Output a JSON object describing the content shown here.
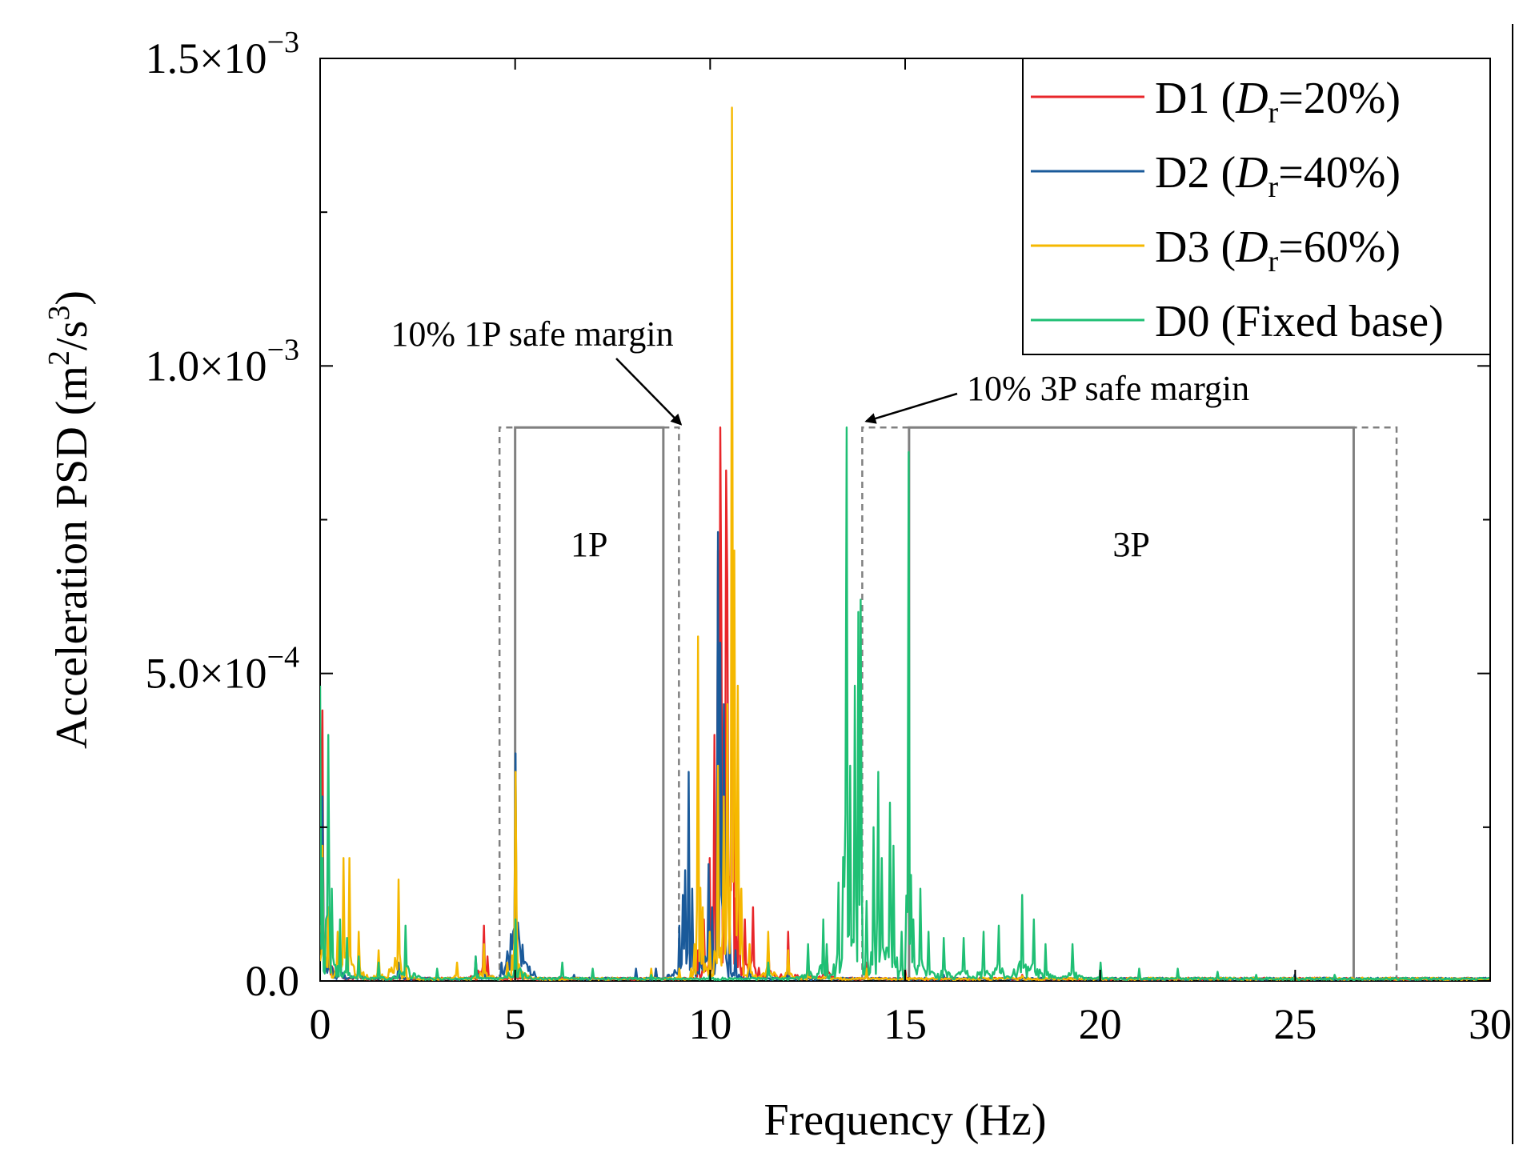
{
  "chart_data": {
    "type": "line",
    "title": "",
    "xlabel": "Frequency (Hz)",
    "ylabel": {
      "prefix": "Acceleration PSD (m",
      "sup1": "2",
      "mid": "/s",
      "sup2": "3",
      "suffix": ")"
    },
    "xlim": [
      0,
      30
    ],
    "ylim": [
      0,
      0.0015
    ],
    "x_ticks": [
      0,
      5,
      10,
      15,
      20,
      25,
      30
    ],
    "x_tick_labels": [
      "0",
      "5",
      "10",
      "15",
      "20",
      "25",
      "30"
    ],
    "y_ticks": [
      {
        "value": 0,
        "mantissa": "0.0",
        "exponent": ""
      },
      {
        "value": 0.0005,
        "mantissa": "5.0×10",
        "exponent": "−4"
      },
      {
        "value": 0.001,
        "mantissa": "1.0×10",
        "exponent": "−3"
      },
      {
        "value": 0.0015,
        "mantissa": "1.5×10",
        "exponent": "−3"
      }
    ],
    "y_minor_ticks": [
      0.00025,
      0.00075,
      0.00125
    ],
    "legend_position": "top-right",
    "series": [
      {
        "name": "D1",
        "legend": {
          "pre": "D1 (",
          "italic": "D",
          "sub": "r",
          "post": "=20%)"
        },
        "color": "#e8262a",
        "peaks": [
          [
            0.05,
            0.00044
          ],
          [
            0.2,
            0.00012
          ],
          [
            0.5,
            6e-05
          ],
          [
            1.0,
            4e-05
          ],
          [
            2.0,
            2e-05
          ],
          [
            4.2,
            9e-05
          ],
          [
            4.3,
            4e-05
          ],
          [
            5.0,
            3e-05
          ],
          [
            8.6,
            2e-05
          ],
          [
            9.7,
            5e-05
          ],
          [
            9.85,
            0.0001
          ],
          [
            10.0,
            0.0002
          ],
          [
            10.1,
            0.0004
          ],
          [
            10.2,
            0.0007
          ],
          [
            10.25,
            0.0009
          ],
          [
            10.3,
            0.00055
          ],
          [
            10.4,
            0.00083
          ],
          [
            10.45,
            0.00065
          ],
          [
            10.55,
            0.00065
          ],
          [
            10.6,
            0.00052
          ],
          [
            10.75,
            0.00015
          ],
          [
            10.9,
            0.0001
          ],
          [
            11.1,
            0.00012
          ],
          [
            11.5,
            6e-05
          ],
          [
            12.0,
            8e-05
          ],
          [
            12.5,
            4e-05
          ],
          [
            13.0,
            5e-05
          ],
          [
            14.0,
            3e-05
          ],
          [
            15.0,
            2e-05
          ],
          [
            18.0,
            1e-05
          ],
          [
            22.0,
            1e-05
          ],
          [
            26.0,
            5e-06
          ],
          [
            29.5,
            5e-06
          ]
        ]
      },
      {
        "name": "D2",
        "legend": {
          "pre": "D2 (",
          "italic": "D",
          "sub": "r",
          "post": "=40%)"
        },
        "color": "#1a5a9a",
        "peaks": [
          [
            0.05,
            0.0003
          ],
          [
            0.25,
            0.0001
          ],
          [
            0.5,
            6e-05
          ],
          [
            1.0,
            5e-05
          ],
          [
            2.0,
            3e-05
          ],
          [
            4.0,
            4e-05
          ],
          [
            4.2,
            6e-05
          ],
          [
            5.0,
            0.00037
          ],
          [
            6.5,
            1e-05
          ],
          [
            8.1,
            2e-05
          ],
          [
            8.6,
            2e-05
          ],
          [
            9.2,
            9e-05
          ],
          [
            9.3,
            0.00014
          ],
          [
            9.35,
            0.00018
          ],
          [
            9.45,
            0.00034
          ],
          [
            9.55,
            0.00015
          ],
          [
            9.75,
            7e-05
          ],
          [
            9.95,
            0.00019
          ],
          [
            10.05,
            0.00012
          ],
          [
            10.2,
            0.00073
          ],
          [
            10.25,
            0.00055
          ],
          [
            10.35,
            0.00045
          ],
          [
            10.5,
            0.0001
          ],
          [
            10.65,
            5e-05
          ],
          [
            11.0,
            3e-05
          ],
          [
            12.0,
            2e-05
          ],
          [
            13.0,
            2e-05
          ],
          [
            14.0,
            2e-05
          ],
          [
            16.0,
            1e-05
          ],
          [
            20.0,
            5e-06
          ],
          [
            25.0,
            1e-05
          ],
          [
            29.0,
            5e-06
          ]
        ]
      },
      {
        "name": "D3",
        "legend": {
          "pre": "D3 (",
          "italic": "D",
          "sub": "r",
          "post": "=60%)"
        },
        "color": "#f5b800",
        "peaks": [
          [
            0.05,
            0.00022
          ],
          [
            0.2,
            0.00012
          ],
          [
            0.45,
            8e-05
          ],
          [
            0.6,
            0.0002
          ],
          [
            0.75,
            0.0002
          ],
          [
            1.0,
            8e-05
          ],
          [
            1.5,
            5e-05
          ],
          [
            2.0,
            0.000165
          ],
          [
            2.2,
            4e-05
          ],
          [
            3.5,
            3e-05
          ],
          [
            4.2,
            6e-05
          ],
          [
            4.8,
            3e-05
          ],
          [
            5.0,
            0.00034
          ],
          [
            5.05,
            0.0001
          ],
          [
            7.0,
            1e-05
          ],
          [
            8.5,
            2e-05
          ],
          [
            9.2,
            2e-05
          ],
          [
            9.5,
            2e-05
          ],
          [
            9.6,
            6e-05
          ],
          [
            9.7,
            0.00056
          ],
          [
            9.8,
            0.00012
          ],
          [
            10.0,
            8e-05
          ],
          [
            10.2,
            0.00035
          ],
          [
            10.35,
            0.0003
          ],
          [
            10.45,
            0.00045
          ],
          [
            10.55,
            0.00142
          ],
          [
            10.62,
            0.0007
          ],
          [
            10.7,
            0.00048
          ],
          [
            10.8,
            0.00015
          ],
          [
            11.0,
            6e-05
          ],
          [
            11.5,
            8e-05
          ],
          [
            12.0,
            5e-05
          ],
          [
            12.5,
            3e-05
          ],
          [
            13.0,
            3e-05
          ],
          [
            14.0,
            2e-05
          ],
          [
            15.0,
            1e-05
          ],
          [
            18.0,
            8e-06
          ],
          [
            22.0,
            8e-06
          ],
          [
            26.0,
            8e-06
          ],
          [
            29.0,
            5e-06
          ]
        ]
      },
      {
        "name": "D0",
        "legend": {
          "pre": "D0 (Fixed base)",
          "italic": "",
          "sub": "",
          "post": ""
        },
        "color": "#1fbf74",
        "peaks": [
          [
            0.0,
            0.00048
          ],
          [
            0.05,
            0.0002
          ],
          [
            0.15,
            0.0001
          ],
          [
            0.2,
            0.0004
          ],
          [
            0.3,
            0.00015
          ],
          [
            0.5,
            0.0001
          ],
          [
            0.7,
            7e-05
          ],
          [
            1.0,
            4e-05
          ],
          [
            1.5,
            3e-05
          ],
          [
            2.2,
            9e-05
          ],
          [
            3.0,
            2e-05
          ],
          [
            4.0,
            4e-05
          ],
          [
            5.0,
            0.0001
          ],
          [
            6.2,
            3e-05
          ],
          [
            7.0,
            2e-05
          ],
          [
            8.5,
            1e-05
          ],
          [
            10.0,
            1e-05
          ],
          [
            11.5,
            3e-05
          ],
          [
            12.5,
            6e-05
          ],
          [
            12.9,
            0.0001
          ],
          [
            13.0,
            6e-05
          ],
          [
            13.3,
            0.00016
          ],
          [
            13.5,
            0.0009
          ],
          [
            13.6,
            0.00035
          ],
          [
            13.7,
            0.00048
          ],
          [
            13.8,
            0.0006
          ],
          [
            13.85,
            0.00062
          ],
          [
            13.9,
            0.00015
          ],
          [
            14.0,
            0.00013
          ],
          [
            14.2,
            0.00025
          ],
          [
            14.3,
            0.00034
          ],
          [
            14.4,
            0.0002
          ],
          [
            14.6,
            0.00029
          ],
          [
            14.7,
            0.00022
          ],
          [
            14.9,
            8e-05
          ],
          [
            15.1,
            0.00086
          ],
          [
            15.2,
            0.0001
          ],
          [
            15.4,
            0.00015
          ],
          [
            15.6,
            8e-05
          ],
          [
            16.0,
            7e-05
          ],
          [
            16.5,
            7e-05
          ],
          [
            17.0,
            8e-05
          ],
          [
            17.4,
            9e-05
          ],
          [
            18.0,
            0.00014
          ],
          [
            18.3,
            0.0001
          ],
          [
            18.6,
            6e-05
          ],
          [
            19.3,
            6e-05
          ],
          [
            20.0,
            3e-05
          ],
          [
            21.0,
            2e-05
          ],
          [
            22.0,
            2e-05
          ],
          [
            23.0,
            1.5e-05
          ],
          [
            24.0,
            1e-05
          ],
          [
            26.0,
            1e-05
          ],
          [
            28.0,
            5e-06
          ],
          [
            30.0,
            5e-06
          ]
        ]
      }
    ],
    "bands": [
      {
        "name": "1P",
        "label": "1P",
        "solid": [
          5.0,
          8.8
        ],
        "dashed": [
          4.6,
          9.2
        ],
        "top": 0.0009
      },
      {
        "name": "3P",
        "label": "3P",
        "solid": [
          15.1,
          26.5
        ],
        "dashed": [
          13.9,
          27.6
        ],
        "top": 0.0009
      }
    ],
    "annotations": [
      {
        "name": "1p-margin",
        "text": "10% 1P safe margin",
        "text_x": 9.2,
        "text_y": 0.00105,
        "target_x": 9.25,
        "target_y": 0.000905
      },
      {
        "name": "3p-margin",
        "text": "10% 3P safe margin",
        "text_x": 16.5,
        "text_y": 0.00096,
        "target_x": 14.0,
        "target_y": 0.00091
      }
    ]
  }
}
